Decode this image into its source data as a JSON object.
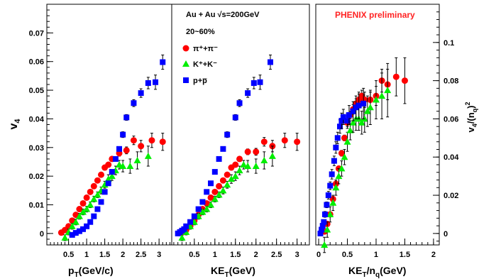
{
  "header": {
    "system": "Au + Au √s=200GeV",
    "centrality": "20~60%",
    "preliminary": "PHENIX preliminary"
  },
  "legend": [
    {
      "label": "π⁺+π⁻",
      "color": "#ff0000",
      "marker": "circle"
    },
    {
      "label": "K⁺+K⁻",
      "color": "#00ee00",
      "marker": "triangle"
    },
    {
      "label": "p+p̅",
      "color": "#0000ff",
      "marker": "square"
    }
  ],
  "chart_data": [
    {
      "type": "scatter",
      "panel": "left",
      "xlabel": "pT(GeV/c)",
      "ylabel": "v4",
      "xlim": [
        -0.1,
        3.35
      ],
      "ylim": [
        -0.004,
        0.08
      ],
      "xticks": [
        0.5,
        1,
        1.5,
        2,
        2.5,
        3
      ],
      "xticklabels": [
        "0.5",
        "1",
        "1.5",
        "2",
        "2.5",
        "3"
      ],
      "yticks": [
        0,
        0.01,
        0.02,
        0.03,
        0.04,
        0.05,
        0.06,
        0.07
      ],
      "yticklabels": [
        "0",
        "0.01",
        "0.02",
        "0.03",
        "0.04",
        "0.05",
        "0.06",
        "0.07"
      ],
      "series": [
        {
          "name": "π⁺+π⁻",
          "color": "#ff0000",
          "marker": "circle",
          "x": [
            0.3,
            0.4,
            0.5,
            0.6,
            0.7,
            0.8,
            0.9,
            1.0,
            1.1,
            1.2,
            1.3,
            1.4,
            1.5,
            1.6,
            1.7,
            1.9,
            2.1,
            2.3,
            2.5,
            2.8,
            3.1
          ],
          "y": [
            0.0003,
            0.0012,
            0.0025,
            0.0045,
            0.0065,
            0.0085,
            0.0105,
            0.0125,
            0.0145,
            0.0165,
            0.0185,
            0.0205,
            0.023,
            0.024,
            0.026,
            0.028,
            0.029,
            0.0325,
            0.0305,
            0.0325,
            0.032
          ],
          "err": [
            0.0002,
            0.0002,
            0.0002,
            0.0002,
            0.0002,
            0.0002,
            0.0002,
            0.0003,
            0.0003,
            0.0004,
            0.0004,
            0.0005,
            0.0005,
            0.0006,
            0.0008,
            0.001,
            0.0012,
            0.0015,
            0.002,
            0.0025,
            0.003
          ]
        },
        {
          "name": "K⁺+K⁻",
          "color": "#00ee00",
          "marker": "triangle",
          "x": [
            0.4,
            0.5,
            0.6,
            0.7,
            0.8,
            0.9,
            1.0,
            1.1,
            1.2,
            1.3,
            1.4,
            1.5,
            1.6,
            1.7,
            1.8,
            1.9,
            2.0,
            2.2,
            2.4,
            2.7
          ],
          "y": [
            -0.0015,
            0.0005,
            0.0025,
            0.004,
            0.006,
            0.0075,
            0.0085,
            0.01,
            0.012,
            0.0135,
            0.015,
            0.017,
            0.019,
            0.02,
            0.022,
            0.024,
            0.0235,
            0.0235,
            0.0255,
            0.027
          ],
          "err": [
            0.001,
            0.001,
            0.001,
            0.001,
            0.001,
            0.001,
            0.001,
            0.001,
            0.001,
            0.001,
            0.0012,
            0.0012,
            0.0015,
            0.0015,
            0.0015,
            0.0015,
            0.002,
            0.0025,
            0.003,
            0.0035
          ]
        },
        {
          "name": "p+p̅",
          "color": "#0000ff",
          "marker": "square",
          "x": [
            0.6,
            0.7,
            0.8,
            0.9,
            1.0,
            1.1,
            1.2,
            1.3,
            1.4,
            1.5,
            1.6,
            1.7,
            1.8,
            1.9,
            2.0,
            2.1,
            2.3,
            2.5,
            2.7,
            2.9,
            3.1
          ],
          "y": [
            -0.0005,
            0.0002,
            0.0008,
            0.0015,
            0.0025,
            0.004,
            0.006,
            0.0085,
            0.011,
            0.0145,
            0.0175,
            0.0215,
            0.026,
            0.0295,
            0.0345,
            0.0405,
            0.0455,
            0.049,
            0.0525,
            0.0528,
            0.0598
          ],
          "err": [
            0.0003,
            0.0003,
            0.0003,
            0.0003,
            0.0004,
            0.0004,
            0.0005,
            0.0005,
            0.0006,
            0.0006,
            0.0007,
            0.0007,
            0.0008,
            0.0008,
            0.001,
            0.001,
            0.0012,
            0.0015,
            0.002,
            0.0025,
            0.0025
          ]
        }
      ]
    },
    {
      "type": "scatter",
      "panel": "middle",
      "xlabel": "KET(GeV)",
      "ylabel": "",
      "xlim": [
        -0.05,
        3.3
      ],
      "ylim": [
        -0.004,
        0.08
      ],
      "xticks": [
        0.5,
        1,
        1.5,
        2,
        2.5,
        3
      ],
      "xticklabels": [
        "0.5",
        "1",
        "1.5",
        "2",
        "2.5",
        "3"
      ],
      "series": [
        {
          "name": "π⁺+π⁻",
          "color": "#ff0000",
          "marker": "circle",
          "x": [
            0.2,
            0.3,
            0.4,
            0.5,
            0.6,
            0.7,
            0.8,
            0.9,
            1.0,
            1.1,
            1.2,
            1.3,
            1.4,
            1.5,
            1.6,
            1.8,
            2.0,
            2.2,
            2.4,
            2.7,
            3.0
          ],
          "y": [
            0.0003,
            0.0012,
            0.0025,
            0.0045,
            0.0065,
            0.0085,
            0.0105,
            0.0125,
            0.0145,
            0.0165,
            0.0185,
            0.0205,
            0.023,
            0.024,
            0.026,
            0.0285,
            0.0285,
            0.032,
            0.0305,
            0.0325,
            0.032
          ],
          "err": [
            0.0002,
            0.0002,
            0.0002,
            0.0002,
            0.0002,
            0.0002,
            0.0002,
            0.0003,
            0.0003,
            0.0004,
            0.0004,
            0.0005,
            0.0005,
            0.0006,
            0.0008,
            0.001,
            0.0012,
            0.0015,
            0.002,
            0.0025,
            0.003
          ]
        },
        {
          "name": "K⁺+K⁻",
          "color": "#00ee00",
          "marker": "triangle",
          "x": [
            0.2,
            0.3,
            0.4,
            0.5,
            0.6,
            0.7,
            0.8,
            0.9,
            1.0,
            1.1,
            1.2,
            1.3,
            1.4,
            1.5,
            1.6,
            1.7,
            1.8,
            2.0,
            2.2,
            2.4
          ],
          "y": [
            -0.0015,
            0.0005,
            0.0025,
            0.004,
            0.006,
            0.0075,
            0.0085,
            0.01,
            0.012,
            0.0135,
            0.015,
            0.017,
            0.019,
            0.02,
            0.022,
            0.024,
            0.0235,
            0.0235,
            0.0255,
            0.027
          ],
          "err": [
            0.001,
            0.001,
            0.001,
            0.001,
            0.001,
            0.001,
            0.001,
            0.001,
            0.001,
            0.001,
            0.0012,
            0.0012,
            0.0015,
            0.0015,
            0.0015,
            0.0015,
            0.002,
            0.0025,
            0.003,
            0.0035
          ]
        },
        {
          "name": "p+p̅",
          "color": "#0000ff",
          "marker": "square",
          "x": [
            0.1,
            0.15,
            0.2,
            0.25,
            0.3,
            0.4,
            0.5,
            0.6,
            0.7,
            0.8,
            0.9,
            1.0,
            1.1,
            1.2,
            1.3,
            1.5,
            1.6,
            1.8,
            1.95,
            2.1,
            2.35
          ],
          "y": [
            0.0,
            0.0005,
            0.001,
            0.0015,
            0.0025,
            0.004,
            0.006,
            0.0085,
            0.011,
            0.0145,
            0.0175,
            0.0215,
            0.026,
            0.0295,
            0.0345,
            0.0405,
            0.0455,
            0.049,
            0.0525,
            0.0528,
            0.0598
          ],
          "err": [
            0.0003,
            0.0003,
            0.0003,
            0.0003,
            0.0004,
            0.0004,
            0.0005,
            0.0005,
            0.0006,
            0.0006,
            0.0007,
            0.0007,
            0.0008,
            0.0008,
            0.001,
            0.001,
            0.0012,
            0.0015,
            0.002,
            0.0025,
            0.0025
          ]
        }
      ]
    },
    {
      "type": "scatter",
      "panel": "right",
      "xlabel": "KET/nq(GeV)",
      "ylabel": "v4/(nq)2",
      "xlim": [
        -0.05,
        2.1
      ],
      "ylim": [
        -0.006,
        0.12
      ],
      "xticks": [
        0,
        0.5,
        1,
        1.5,
        2
      ],
      "xticklabels": [
        "0",
        "0.5",
        "1",
        "1.5",
        "2"
      ],
      "yticks": [
        0,
        0.02,
        0.04,
        0.06,
        0.08,
        0.1
      ],
      "yticklabels": [
        "0",
        "0.02",
        "0.04",
        "0.06",
        "0.08",
        "0.1"
      ],
      "series": [
        {
          "name": "π⁺+π⁻",
          "color": "#ff0000",
          "marker": "circle",
          "x": [
            0.1,
            0.15,
            0.2,
            0.25,
            0.3,
            0.35,
            0.4,
            0.45,
            0.5,
            0.55,
            0.6,
            0.65,
            0.7,
            0.75,
            0.8,
            0.9,
            1.0,
            1.1,
            1.2,
            1.35,
            1.5
          ],
          "y": [
            0.001,
            0.005,
            0.01,
            0.018,
            0.026,
            0.034,
            0.042,
            0.05,
            0.058,
            0.062,
            0.065,
            0.068,
            0.07,
            0.072,
            0.07,
            0.07,
            0.072,
            0.08,
            0.078,
            0.082,
            0.08
          ],
          "err": [
            0.001,
            0.001,
            0.001,
            0.001,
            0.001,
            0.001,
            0.0015,
            0.0015,
            0.002,
            0.002,
            0.0025,
            0.0025,
            0.003,
            0.003,
            0.004,
            0.004,
            0.005,
            0.006,
            0.008,
            0.01,
            0.012
          ]
        },
        {
          "name": "K⁺+K⁻",
          "color": "#00ee00",
          "marker": "triangle",
          "x": [
            0.1,
            0.15,
            0.2,
            0.25,
            0.3,
            0.35,
            0.4,
            0.45,
            0.5,
            0.55,
            0.6,
            0.65,
            0.7,
            0.75,
            0.8,
            0.85,
            0.9,
            1.0,
            1.1,
            1.2
          ],
          "y": [
            -0.006,
            0.002,
            0.01,
            0.016,
            0.024,
            0.03,
            0.034,
            0.04,
            0.048,
            0.054,
            0.058,
            0.06,
            0.06,
            0.058,
            0.06,
            0.064,
            0.066,
            0.07,
            0.072,
            0.075
          ],
          "err": [
            0.004,
            0.004,
            0.004,
            0.004,
            0.004,
            0.004,
            0.004,
            0.004,
            0.005,
            0.005,
            0.005,
            0.006,
            0.006,
            0.006,
            0.007,
            0.008,
            0.009,
            0.01,
            0.012,
            0.014
          ]
        },
        {
          "name": "p+p̅",
          "color": "#0000ff",
          "marker": "square",
          "x": [
            0.03,
            0.05,
            0.07,
            0.09,
            0.11,
            0.14,
            0.17,
            0.2,
            0.23,
            0.27,
            0.3,
            0.33,
            0.37,
            0.4,
            0.43,
            0.5,
            0.53,
            0.6,
            0.65,
            0.7,
            0.78
          ],
          "y": [
            0.0,
            0.002,
            0.004,
            0.006,
            0.01,
            0.015,
            0.02,
            0.025,
            0.031,
            0.038,
            0.045,
            0.05,
            0.056,
            0.059,
            0.061,
            0.059,
            0.062,
            0.064,
            0.066,
            0.067,
            0.068
          ],
          "err": [
            0.001,
            0.001,
            0.001,
            0.001,
            0.0015,
            0.0015,
            0.002,
            0.002,
            0.0025,
            0.0025,
            0.003,
            0.003,
            0.0035,
            0.004,
            0.004,
            0.004,
            0.005,
            0.005,
            0.006,
            0.007,
            0.008
          ]
        }
      ]
    }
  ]
}
